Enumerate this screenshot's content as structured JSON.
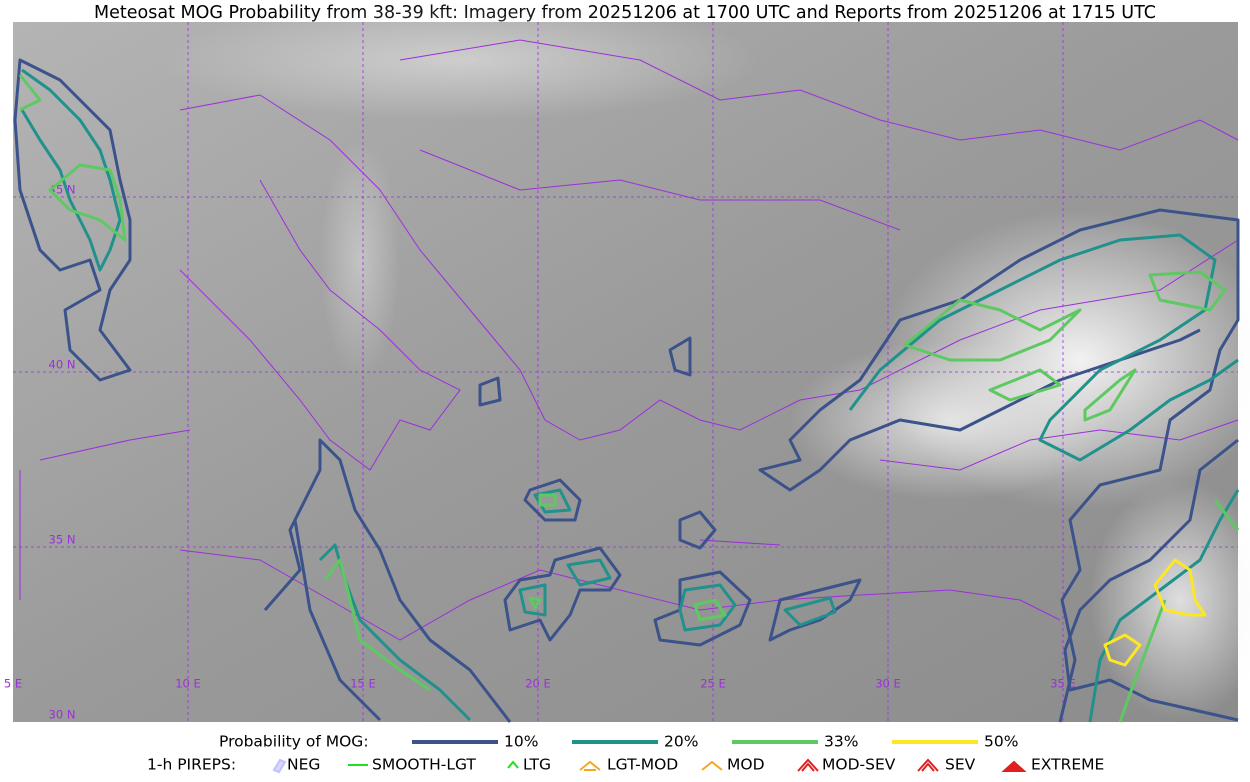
{
  "title": "Meteosat MOG Probability from 38-39 kft: Imagery from 20251206 at 1700 UTC and Reports from 20251206 at 1715 UTC",
  "map": {
    "longitude_labels": [
      "5 E",
      "10 E",
      "15 E",
      "20 E",
      "25 E",
      "30 E",
      "35 E"
    ],
    "latitude_labels": [
      "45 N",
      "40 N",
      "35 N",
      "30 N"
    ]
  },
  "legend": {
    "probability": {
      "label": "Probability of MOG:",
      "items": [
        {
          "label": "10%",
          "color": "#3b528b"
        },
        {
          "label": "20%",
          "color": "#21918c"
        },
        {
          "label": "33%",
          "color": "#5ec962"
        },
        {
          "label": "50%",
          "color": "#fde725"
        }
      ]
    },
    "pireps": {
      "label": "1-h PIREPS:",
      "items": [
        {
          "label": "NEG"
        },
        {
          "label": "SMOOTH-LGT"
        },
        {
          "label": "LTG"
        },
        {
          "label": "LGT-MOD"
        },
        {
          "label": "MOD"
        },
        {
          "label": "MOD-SEV"
        },
        {
          "label": "SEV"
        },
        {
          "label": "EXTREME"
        }
      ]
    }
  }
}
